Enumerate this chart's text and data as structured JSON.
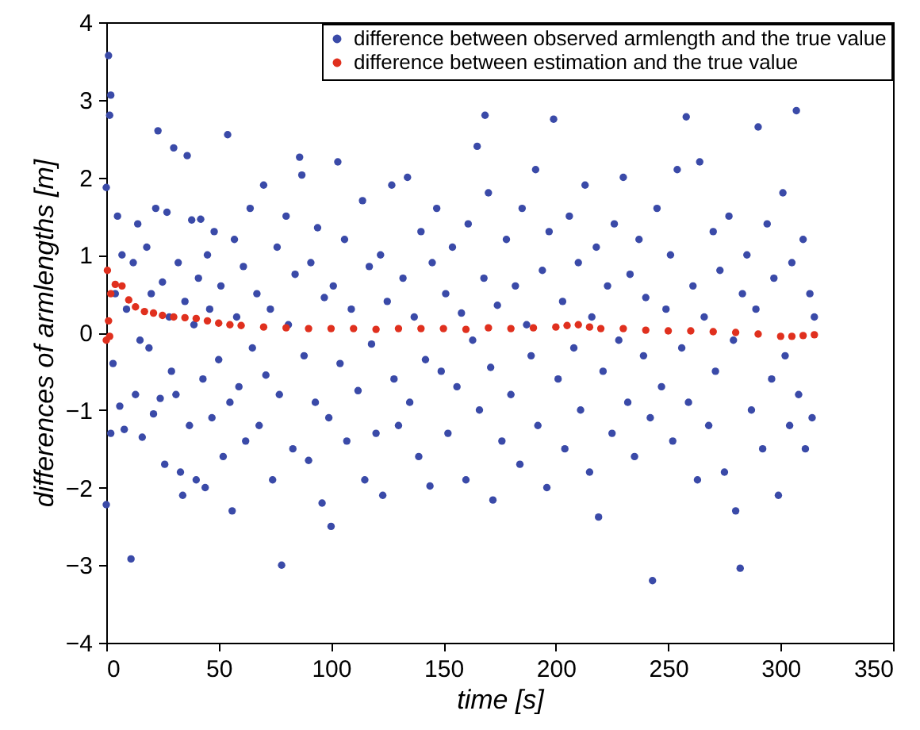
{
  "chart_data": {
    "type": "scatter",
    "xlabel": "time [s]",
    "ylabel": "differences of armlengths [m]",
    "xlim": [
      0,
      350
    ],
    "xticks": [
      0,
      50,
      100,
      150,
      200,
      250,
      300,
      350
    ],
    "ylim": [
      -4,
      4
    ],
    "yticks": [
      -4,
      -3,
      -2,
      -1,
      0,
      1,
      2,
      3,
      4
    ],
    "grid": false,
    "legend": "top right",
    "marker": "circle",
    "series": [
      {
        "name": "difference between observed armlength and the true value",
        "color": "#3a4aa8",
        "x": [
          0,
          0,
          1,
          2,
          1.5,
          2,
          3,
          4,
          5,
          6,
          7,
          8,
          9,
          11,
          12,
          13,
          14,
          15,
          16,
          18,
          19,
          20,
          21,
          22,
          23,
          24,
          25,
          26,
          27,
          28,
          29,
          30,
          31,
          32,
          33,
          34,
          35,
          36,
          37,
          38,
          39,
          40,
          41,
          42,
          43,
          44,
          45,
          46,
          47,
          48,
          50,
          51,
          52,
          54,
          55,
          56,
          57,
          58,
          59,
          61,
          62,
          64,
          65,
          67,
          68,
          70,
          71,
          73,
          74,
          76,
          77,
          78,
          80,
          81,
          83,
          84,
          86,
          87,
          88,
          90,
          91,
          93,
          94,
          96,
          97,
          99,
          100,
          101,
          103,
          104,
          106,
          107,
          109,
          168.5,
          112,
          114,
          115,
          117,
          118,
          120,
          122,
          123,
          125,
          127,
          128,
          130,
          132,
          134,
          135,
          137,
          139,
          140,
          142,
          144,
          145,
          147,
          149,
          151,
          152,
          154,
          156,
          158,
          160,
          161,
          163,
          165,
          166,
          168,
          170,
          171,
          172,
          174,
          176,
          178,
          180,
          182,
          184,
          185,
          187,
          189,
          191,
          192,
          194,
          196,
          197,
          199,
          201,
          203,
          204,
          206,
          208,
          210,
          211,
          213,
          215,
          216,
          218,
          219,
          221,
          223,
          225,
          226,
          228,
          230,
          232,
          233,
          235,
          237,
          239,
          240,
          242,
          243,
          245,
          247,
          249,
          251,
          252,
          254,
          256,
          258,
          259,
          261,
          263,
          264,
          266,
          268,
          270,
          271,
          273,
          275,
          277,
          279,
          280,
          282,
          283,
          285,
          287,
          289,
          290,
          292,
          294,
          296,
          297,
          299,
          301,
          302,
          304,
          305,
          307,
          308,
          310,
          311,
          313,
          314,
          315
        ],
        "values": [
          1.87,
          -2.22,
          3.57,
          3.06,
          2.8,
          -1.3,
          -0.4,
          0.5,
          1.5,
          -0.95,
          1.0,
          -1.25,
          0.3,
          -2.92,
          0.9,
          -0.8,
          1.4,
          -0.1,
          -1.35,
          1.1,
          -0.2,
          0.5,
          -1.05,
          1.6,
          2.6,
          -0.85,
          0.65,
          -1.7,
          1.55,
          0.2,
          -0.5,
          2.38,
          -0.8,
          0.9,
          -1.8,
          -2.1,
          0.4,
          2.28,
          -1.2,
          1.45,
          0.1,
          -1.9,
          0.7,
          1.46,
          -0.6,
          -2.0,
          1.0,
          0.3,
          -1.1,
          1.3,
          -0.35,
          0.6,
          -1.6,
          2.55,
          -0.9,
          -2.3,
          1.2,
          0.2,
          -0.7,
          0.85,
          -1.4,
          1.6,
          -0.2,
          0.5,
          -1.2,
          1.9,
          -0.55,
          0.3,
          -1.9,
          1.1,
          -0.8,
          -3.0,
          1.5,
          0.1,
          -1.5,
          0.75,
          2.26,
          2.03,
          -0.3,
          -1.65,
          0.9,
          -0.9,
          1.35,
          -2.2,
          0.45,
          -1.1,
          -2.5,
          0.6,
          2.2,
          -0.4,
          1.2,
          -1.4,
          0.3,
          2.8,
          -0.75,
          1.7,
          -1.9,
          0.85,
          -0.15,
          -1.3,
          1.0,
          -2.1,
          0.4,
          1.9,
          -0.6,
          -1.2,
          0.7,
          2.0,
          -0.9,
          0.2,
          -1.6,
          1.3,
          -0.35,
          -1.98,
          0.9,
          1.6,
          -0.5,
          0.5,
          -1.3,
          1.1,
          -0.7,
          0.25,
          -1.9,
          1.4,
          -0.1,
          2.4,
          -1.0,
          0.7,
          1.8,
          -0.45,
          -2.16,
          0.35,
          -1.4,
          1.2,
          -0.8,
          0.6,
          -1.7,
          1.6,
          0.1,
          -0.3,
          2.1,
          -1.2,
          0.8,
          -2.0,
          1.3,
          2.75,
          -0.6,
          0.4,
          -1.5,
          1.5,
          -0.2,
          0.9,
          -1.0,
          1.9,
          -1.8,
          0.2,
          1.1,
          -2.38,
          -0.5,
          0.6,
          -1.3,
          1.4,
          -0.1,
          2.0,
          -0.9,
          0.75,
          -1.6,
          1.2,
          -0.3,
          0.45,
          -1.1,
          -3.2,
          1.6,
          -0.7,
          0.3,
          1.0,
          -1.4,
          2.1,
          -0.2,
          2.78,
          -0.9,
          0.6,
          -1.9,
          2.2,
          0.2,
          -1.2,
          1.3,
          -0.5,
          0.8,
          -1.8,
          1.5,
          -0.1,
          -2.3,
          -3.04,
          0.5,
          1.0,
          -1.0,
          0.3,
          2.65,
          -1.5,
          1.4,
          -0.6,
          0.7,
          -2.1,
          1.8,
          -0.3,
          -1.2,
          0.9,
          2.86,
          -0.8,
          1.2,
          -1.5,
          0.5,
          -1.1,
          0.2
        ]
      },
      {
        "name": "difference between estimation and the true value",
        "color": "#e0301e",
        "x": [
          0,
          0.5,
          1,
          1.5,
          2,
          4,
          7,
          10,
          13,
          17,
          21,
          25,
          30,
          35,
          40,
          45,
          50,
          55,
          60,
          70,
          80,
          90,
          100,
          110,
          120,
          130,
          140,
          150,
          160,
          170,
          180,
          190,
          200,
          205,
          210,
          215,
          220,
          230,
          240,
          250,
          260,
          270,
          280,
          290,
          300,
          305,
          310,
          315
        ],
        "values": [
          -0.1,
          0.8,
          0.15,
          -0.05,
          0.5,
          0.62,
          0.6,
          0.42,
          0.33,
          0.27,
          0.25,
          0.22,
          0.2,
          0.19,
          0.18,
          0.15,
          0.12,
          0.1,
          0.09,
          0.07,
          0.06,
          0.05,
          0.05,
          0.05,
          0.04,
          0.05,
          0.05,
          0.05,
          0.04,
          0.06,
          0.05,
          0.06,
          0.07,
          0.09,
          0.1,
          0.07,
          0.05,
          0.05,
          0.03,
          0.02,
          0.02,
          0.01,
          0.0,
          -0.02,
          -0.05,
          -0.05,
          -0.04,
          -0.03
        ]
      }
    ]
  }
}
